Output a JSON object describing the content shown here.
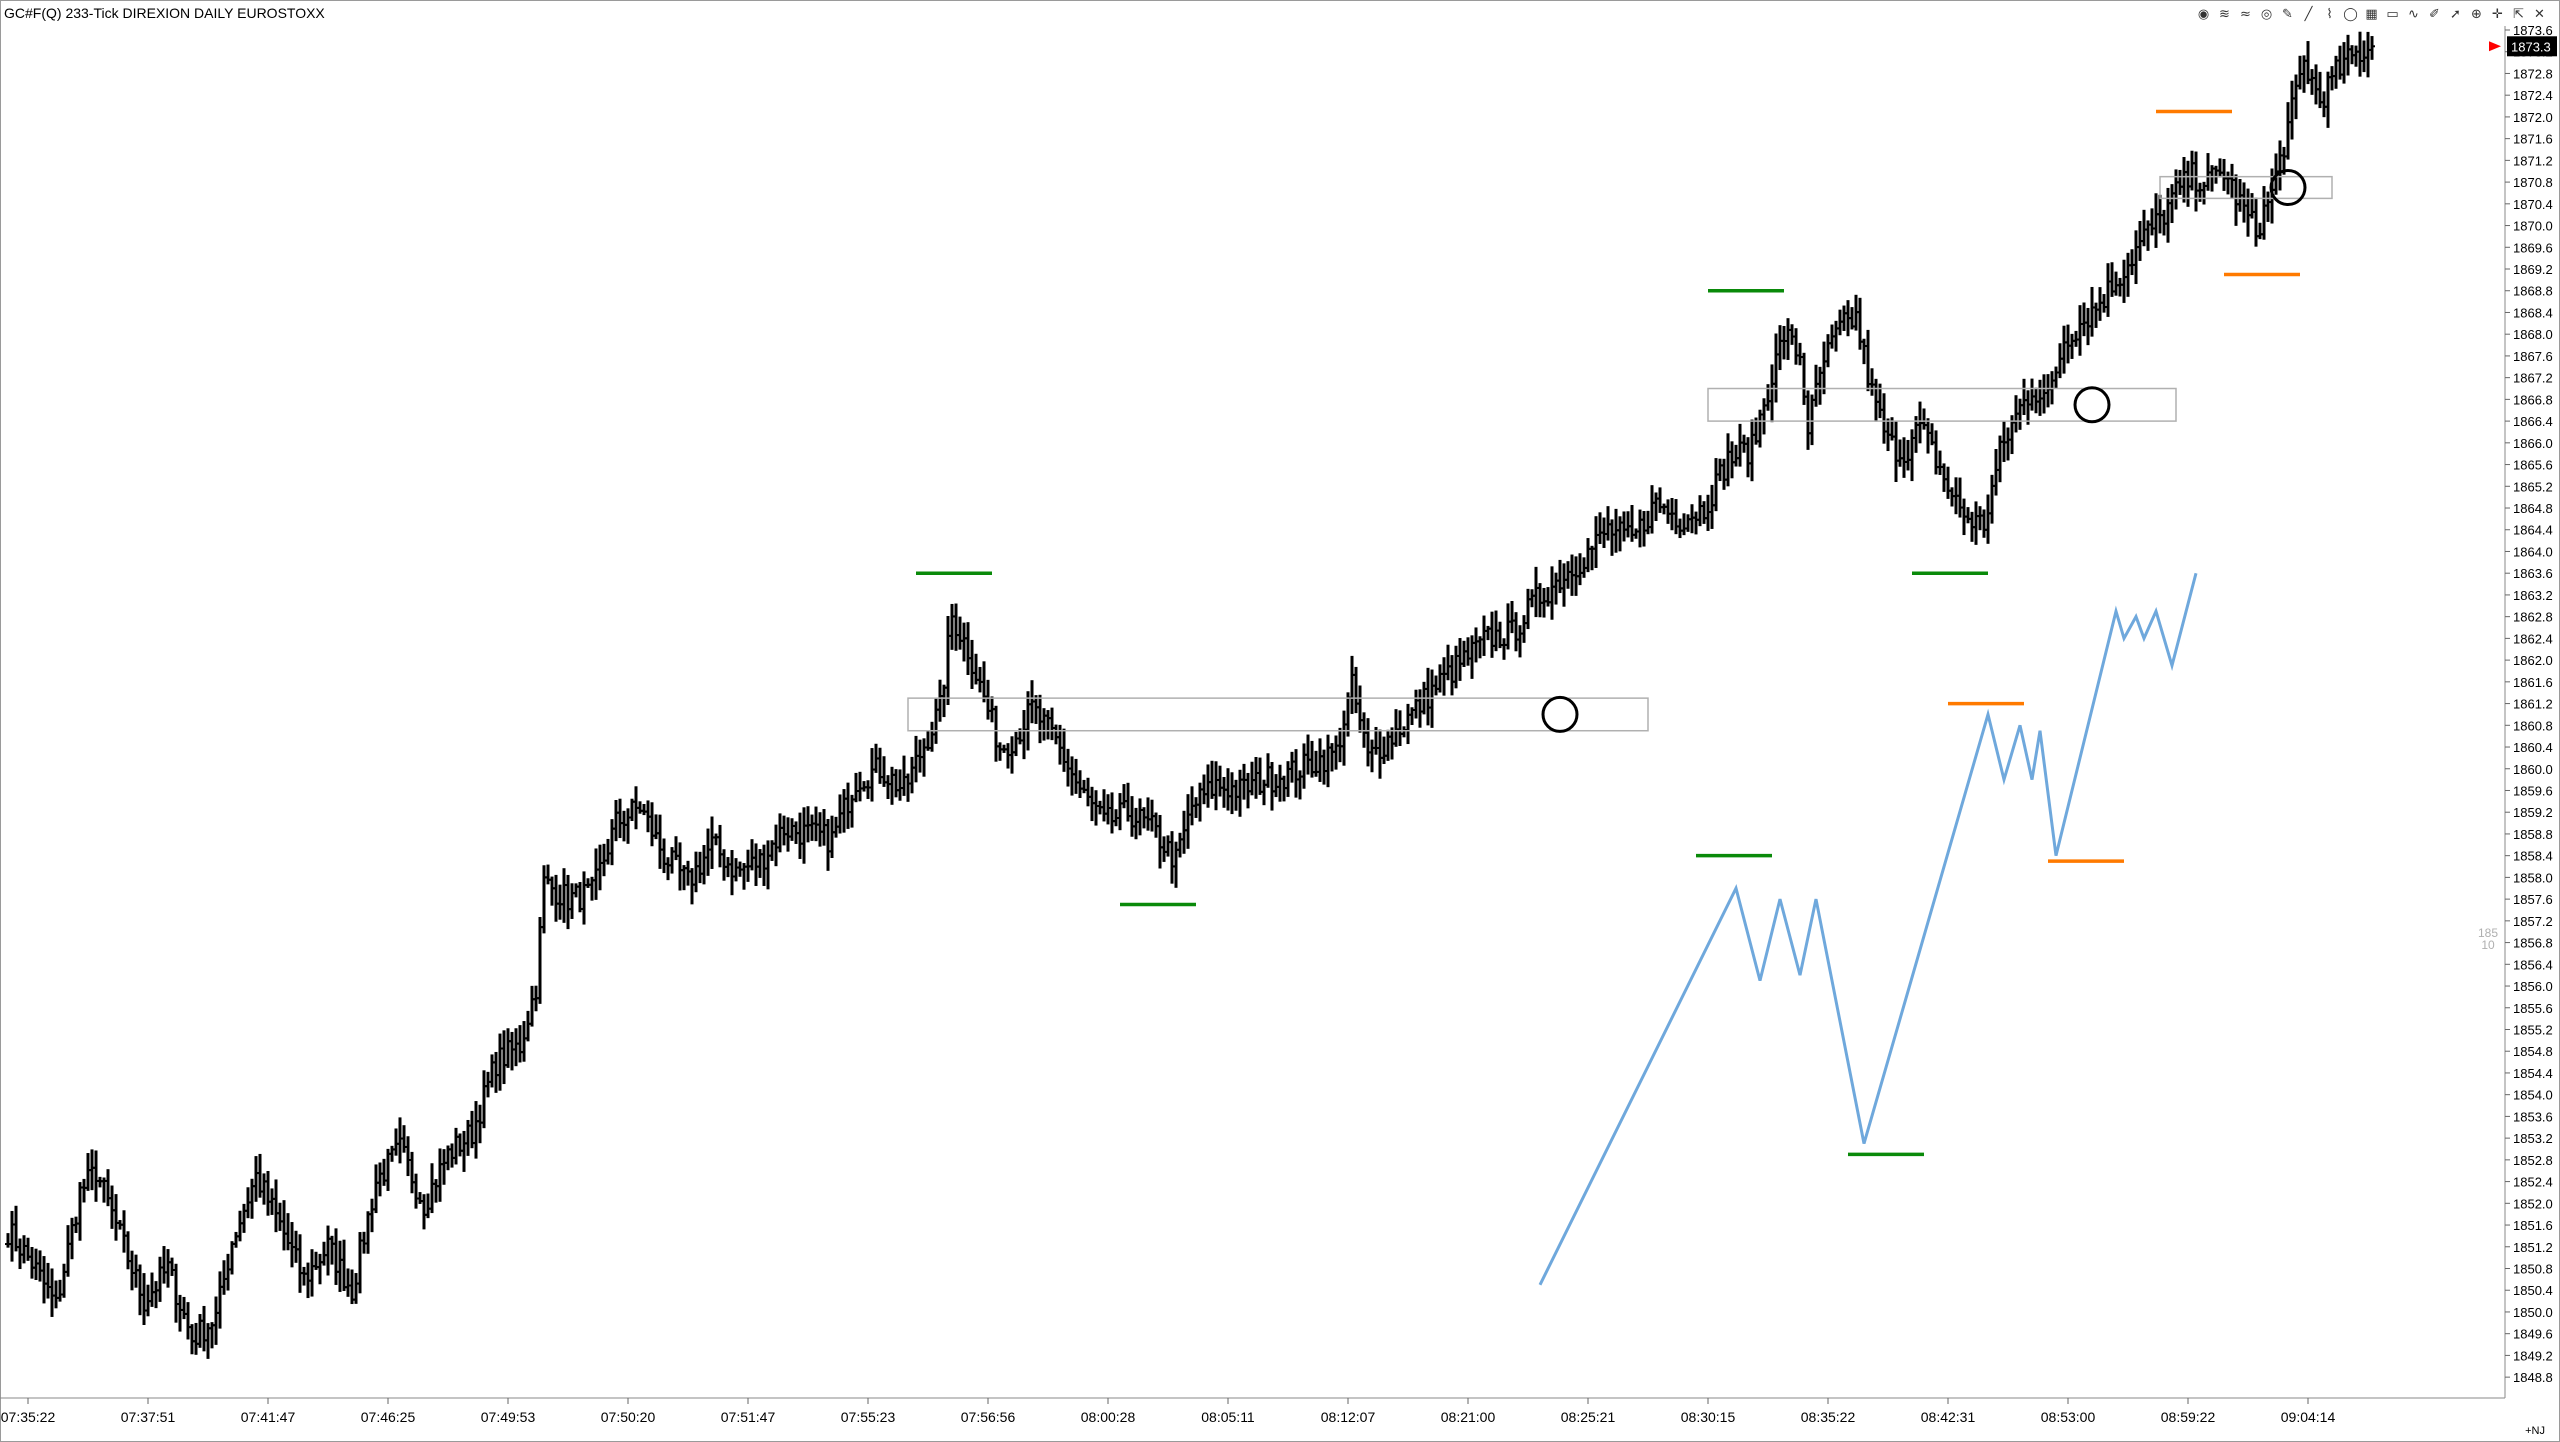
{
  "window": {
    "title": "GC#F(Q) 233-Tick DIREXION  DAILY EUROSTOXX"
  },
  "toolbar": {
    "icons": [
      "globe-icon",
      "stack-icon",
      "wifi-icon",
      "target-icon",
      "pencil-icon",
      "line-tool-icon",
      "fib-icon",
      "ellipse-icon",
      "grid-icon",
      "rectangle-icon",
      "wave-icon",
      "brush-icon",
      "arrow-icon",
      "magnet-icon",
      "crosshair-icon",
      "cursor-icon",
      "delete-icon"
    ]
  },
  "colors": {
    "bars": "#000000",
    "swing_high_green": "#0a8a0a",
    "swing_orange": "#ff7a00",
    "zigzag_blue": "#6fa8dc",
    "zone_stroke": "#b0b0b0",
    "current_price_bg": "#000000",
    "current_price_marker": "#ff0000"
  },
  "price_axis": {
    "current_price_label": "1873.3",
    "faded_labels": [
      "185",
      "10"
    ],
    "footer_label": "+NJ"
  },
  "chart_data": {
    "type": "ohlc",
    "title": "",
    "xlabel": "",
    "ylabel": "",
    "ylim": [
      1848.6,
      1873.6
    ],
    "y_ticks": [
      1873.6,
      1873.2,
      1872.8,
      1872.4,
      1872.0,
      1871.6,
      1871.2,
      1870.8,
      1870.4,
      1870.0,
      1869.6,
      1869.2,
      1868.8,
      1868.4,
      1868.0,
      1867.6,
      1867.2,
      1866.8,
      1866.4,
      1866.0,
      1865.6,
      1865.2,
      1864.8,
      1864.4,
      1864.0,
      1863.6,
      1863.2,
      1862.8,
      1862.4,
      1862.0,
      1861.6,
      1861.2,
      1860.8,
      1860.4,
      1860.0,
      1859.6,
      1859.2,
      1858.8,
      1858.4,
      1858.0,
      1857.6,
      1857.2,
      1856.8,
      1856.4,
      1856.0,
      1855.6,
      1855.2,
      1854.8,
      1854.4,
      1854.0,
      1853.6,
      1853.2,
      1852.8,
      1852.4,
      1852.0,
      1851.6,
      1851.2,
      1850.8,
      1850.4,
      1850.0,
      1849.6,
      1849.2,
      1848.8
    ],
    "x_tick_labels": [
      "07:35:22",
      "07:37:51",
      "07:41:47",
      "07:46:25",
      "07:49:53",
      "07:50:20",
      "07:51:47",
      "07:55:23",
      "07:56:56",
      "08:00:28",
      "08:05:11",
      "08:12:07",
      "08:21:00",
      "08:25:21",
      "08:30:15",
      "08:35:22",
      "08:42:31",
      "08:53:00",
      "08:59:22",
      "09:04:14"
    ],
    "x_tick_bar_index": [
      5,
      35,
      65,
      95,
      125,
      155,
      185,
      215,
      245,
      275,
      305,
      335,
      365,
      395,
      425,
      455,
      485,
      515,
      545,
      575
    ],
    "bar_count": 592,
    "close_anchors": [
      [
        0,
        1851.5
      ],
      [
        6,
        1850.9
      ],
      [
        12,
        1850.1
      ],
      [
        18,
        1852.2
      ],
      [
        22,
        1852.6
      ],
      [
        28,
        1851.4
      ],
      [
        34,
        1850.2
      ],
      [
        40,
        1850.8
      ],
      [
        46,
        1849.5
      ],
      [
        52,
        1849.9
      ],
      [
        56,
        1851.3
      ],
      [
        62,
        1852.5
      ],
      [
        68,
        1851.6
      ],
      [
        74,
        1850.6
      ],
      [
        80,
        1851.2
      ],
      [
        86,
        1850.4
      ],
      [
        92,
        1852.4
      ],
      [
        98,
        1853.0
      ],
      [
        104,
        1852.0
      ],
      [
        110,
        1852.9
      ],
      [
        116,
        1853.3
      ],
      [
        122,
        1854.6
      ],
      [
        128,
        1854.9
      ],
      [
        132,
        1856.0
      ],
      [
        134,
        1857.9
      ],
      [
        140,
        1857.6
      ],
      [
        146,
        1857.7
      ],
      [
        152,
        1859.0
      ],
      [
        158,
        1859.3
      ],
      [
        164,
        1858.4
      ],
      [
        170,
        1857.9
      ],
      [
        176,
        1858.6
      ],
      [
        182,
        1858.1
      ],
      [
        188,
        1858.3
      ],
      [
        194,
        1858.9
      ],
      [
        200,
        1858.8
      ],
      [
        206,
        1858.7
      ],
      [
        212,
        1859.8
      ],
      [
        218,
        1860.0
      ],
      [
        224,
        1859.6
      ],
      [
        230,
        1860.6
      ],
      [
        233,
        1861.1
      ],
      [
        236,
        1862.8
      ],
      [
        240,
        1862.2
      ],
      [
        244,
        1861.3
      ],
      [
        248,
        1860.4
      ],
      [
        252,
        1860.6
      ],
      [
        256,
        1861.1
      ],
      [
        262,
        1860.5
      ],
      [
        268,
        1859.6
      ],
      [
        274,
        1859.0
      ],
      [
        280,
        1859.2
      ],
      [
        286,
        1858.9
      ],
      [
        292,
        1858.3
      ],
      [
        296,
        1859.3
      ],
      [
        302,
        1859.7
      ],
      [
        308,
        1859.6
      ],
      [
        314,
        1859.8
      ],
      [
        320,
        1859.9
      ],
      [
        326,
        1860.1
      ],
      [
        332,
        1860.3
      ],
      [
        336,
        1861.5
      ],
      [
        340,
        1860.2
      ],
      [
        346,
        1860.6
      ],
      [
        352,
        1861.1
      ],
      [
        358,
        1861.6
      ],
      [
        364,
        1862.0
      ],
      [
        370,
        1862.4
      ],
      [
        376,
        1862.5
      ],
      [
        382,
        1863.1
      ],
      [
        388,
        1863.5
      ],
      [
        394,
        1863.9
      ],
      [
        400,
        1864.4
      ],
      [
        406,
        1864.2
      ],
      [
        412,
        1864.9
      ],
      [
        418,
        1864.6
      ],
      [
        424,
        1864.8
      ],
      [
        430,
        1865.7
      ],
      [
        436,
        1865.9
      ],
      [
        440,
        1867.0
      ],
      [
        444,
        1868.0
      ],
      [
        448,
        1867.6
      ],
      [
        450,
        1866.3
      ],
      [
        454,
        1867.5
      ],
      [
        458,
        1868.1
      ],
      [
        462,
        1868.3
      ],
      [
        466,
        1866.9
      ],
      [
        470,
        1866.0
      ],
      [
        474,
        1865.8
      ],
      [
        478,
        1866.3
      ],
      [
        482,
        1865.7
      ],
      [
        486,
        1865.0
      ],
      [
        490,
        1864.6
      ],
      [
        494,
        1864.5
      ],
      [
        498,
        1865.8
      ],
      [
        502,
        1866.5
      ],
      [
        506,
        1867.0
      ],
      [
        510,
        1866.8
      ],
      [
        514,
        1867.9
      ],
      [
        518,
        1868.2
      ],
      [
        522,
        1868.5
      ],
      [
        526,
        1868.9
      ],
      [
        530,
        1869.3
      ],
      [
        534,
        1869.8
      ],
      [
        538,
        1870.1
      ],
      [
        542,
        1870.6
      ],
      [
        546,
        1870.9
      ],
      [
        550,
        1870.8
      ],
      [
        554,
        1871.0
      ],
      [
        558,
        1870.4
      ],
      [
        562,
        1869.9
      ],
      [
        566,
        1870.6
      ],
      [
        570,
        1871.8
      ],
      [
        574,
        1873.0
      ],
      [
        578,
        1872.3
      ],
      [
        582,
        1872.8
      ],
      [
        586,
        1873.1
      ],
      [
        591,
        1873.3
      ]
    ],
    "swing_markers": [
      {
        "price": 1863.6,
        "from_bar": 227,
        "to_bar": 246,
        "color": "green"
      },
      {
        "price": 1857.5,
        "from_bar": 278,
        "to_bar": 297,
        "color": "green"
      },
      {
        "price": 1868.8,
        "from_bar": 425,
        "to_bar": 444,
        "color": "green"
      },
      {
        "price": 1863.6,
        "from_bar": 476,
        "to_bar": 495,
        "color": "green"
      },
      {
        "price": 1872.1,
        "from_bar": 537,
        "to_bar": 556,
        "color": "orange"
      },
      {
        "price": 1869.1,
        "from_bar": 554,
        "to_bar": 573,
        "color": "orange"
      }
    ],
    "zones": [
      {
        "top": 1861.3,
        "bottom": 1860.7,
        "from_bar": 225,
        "to_bar": 410,
        "circle_bar": 388
      },
      {
        "top": 1867.0,
        "bottom": 1866.4,
        "from_bar": 425,
        "to_bar": 542,
        "circle_bar": 521
      },
      {
        "top": 1870.9,
        "bottom": 1870.5,
        "from_bar": 538,
        "to_bar": 581,
        "circle_bar": 570
      }
    ],
    "zigzag": {
      "points": [
        [
          383,
          1850.5
        ],
        [
          432,
          1857.8
        ],
        [
          438,
          1856.1
        ],
        [
          443,
          1857.6
        ],
        [
          448,
          1856.2
        ],
        [
          452,
          1857.6
        ],
        [
          464,
          1853.1
        ],
        [
          495,
          1861.0
        ],
        [
          499,
          1859.8
        ],
        [
          503,
          1860.8
        ],
        [
          506,
          1859.8
        ],
        [
          508,
          1860.7
        ],
        [
          512,
          1858.4
        ],
        [
          527,
          1862.9
        ],
        [
          529,
          1862.4
        ],
        [
          532,
          1862.8
        ],
        [
          534,
          1862.4
        ],
        [
          537,
          1862.9
        ],
        [
          541,
          1861.9
        ],
        [
          547,
          1863.6
        ]
      ],
      "lows": [
        {
          "price": 1852.9,
          "from_bar": 460,
          "to_bar": 479,
          "color": "green"
        },
        {
          "price": 1858.4,
          "from_bar": 422,
          "to_bar": 441,
          "color": "green"
        },
        {
          "price": 1861.2,
          "from_bar": 485,
          "to_bar": 504,
          "color": "orange"
        },
        {
          "price": 1858.3,
          "from_bar": 510,
          "to_bar": 529,
          "color": "orange"
        }
      ]
    }
  }
}
